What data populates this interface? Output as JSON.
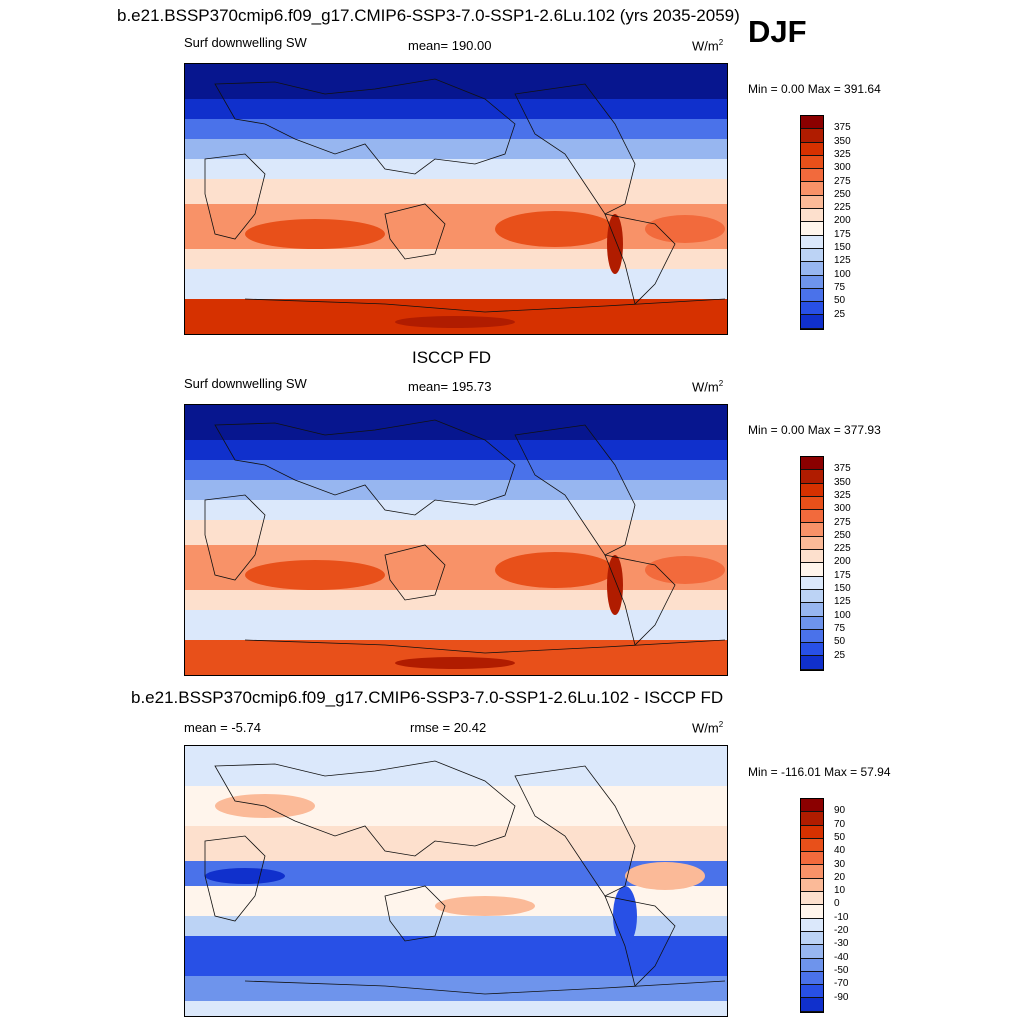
{
  "season": "DJF",
  "panels": [
    {
      "title": "b.e21.BSSP370cmip6.f09_g17.CMIP6-SSP3-7.0-SSP1-2.6Lu.102 (yrs 2035-2059)",
      "left": "Surf downwelling SW",
      "center": "mean= 190.00",
      "units": "W/m",
      "units_sup": "2",
      "minmax": "Min =   0.00 Max = 391.64",
      "colorbar_labels": [
        "375",
        "350",
        "325",
        "300",
        "275",
        "250",
        "225",
        "200",
        "175",
        "150",
        "125",
        "100",
        "75",
        "50",
        "25"
      ]
    },
    {
      "title": "ISCCP FD",
      "left": "Surf downwelling SW",
      "center": "mean= 195.73",
      "units": "W/m",
      "units_sup": "2",
      "minmax": "Min =   0.00 Max = 377.93",
      "colorbar_labels": [
        "375",
        "350",
        "325",
        "300",
        "275",
        "250",
        "225",
        "200",
        "175",
        "150",
        "125",
        "100",
        "75",
        "50",
        "25"
      ]
    },
    {
      "title": "b.e21.BSSP370cmip6.f09_g17.CMIP6-SSP3-7.0-SSP1-2.6Lu.102 - ISCCP FD",
      "left": "mean =  -5.74",
      "center": "rmse =  20.42",
      "units": "W/m",
      "units_sup": "2",
      "minmax": "Min = -116.01 Max =  57.94",
      "colorbar_labels": [
        "90",
        "70",
        "50",
        "40",
        "30",
        "20",
        "10",
        "0",
        "-10",
        "-20",
        "-30",
        "-40",
        "-50",
        "-70",
        "-90"
      ]
    }
  ],
  "colors": {
    "scale": [
      "#8b0000",
      "#b01c00",
      "#d63100",
      "#e8501a",
      "#f26a3c",
      "#f89268",
      "#fbba98",
      "#fde0cd",
      "#fff5ec",
      "#dbe8fb",
      "#bcd3f5",
      "#97b6f0",
      "#6e94ec",
      "#4a72ea",
      "#2850e6",
      "#1030cc",
      "#07168f"
    ]
  }
}
